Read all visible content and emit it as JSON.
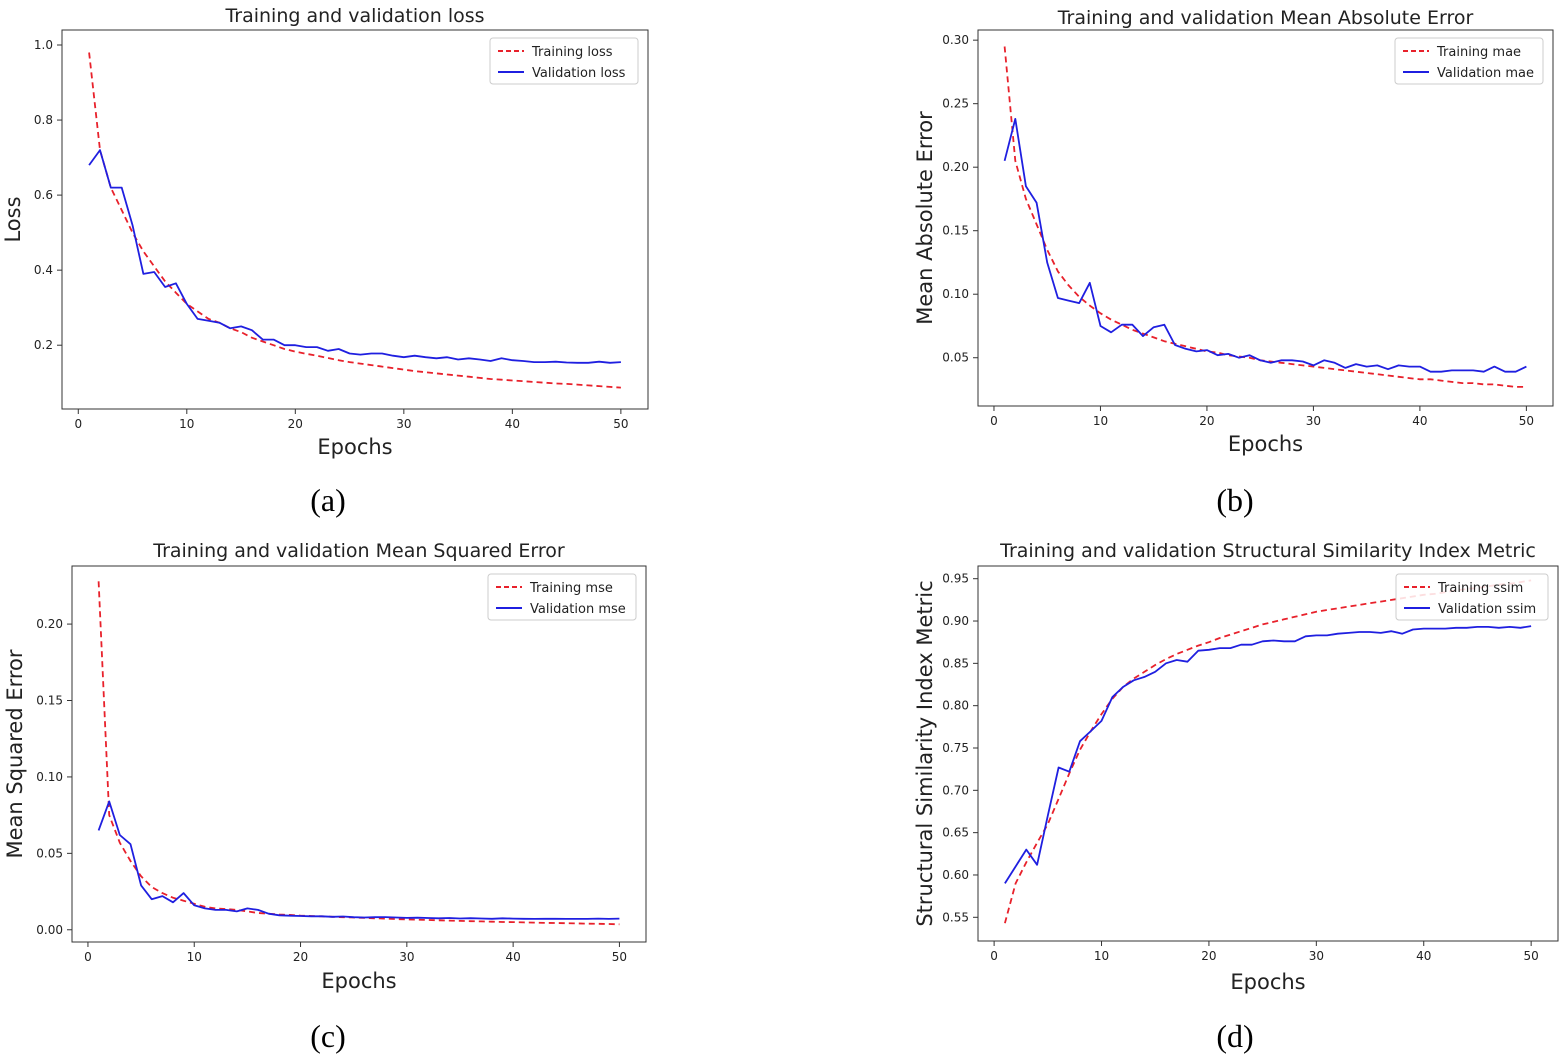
{
  "chart_data": [
    {
      "type": "line",
      "panel": "a",
      "title": "Training and validation loss",
      "xlabel": "Epochs",
      "ylabel": "Loss",
      "xlim": [
        -1.5,
        52.5
      ],
      "ylim": [
        0.03,
        1.04
      ],
      "xticks": [
        0,
        10,
        20,
        30,
        40,
        50
      ],
      "yticks": [
        0.2,
        0.4,
        0.6,
        0.8,
        1.0
      ],
      "ytick_labels": [
        "0.2",
        "0.4",
        "0.6",
        "0.8",
        "1.0"
      ],
      "legend_position": "top-right",
      "grid": false,
      "x": [
        1,
        2,
        3,
        4,
        5,
        6,
        7,
        8,
        9,
        10,
        11,
        12,
        13,
        14,
        15,
        16,
        17,
        18,
        19,
        20,
        21,
        22,
        23,
        24,
        25,
        26,
        27,
        28,
        29,
        30,
        31,
        32,
        33,
        34,
        35,
        36,
        37,
        38,
        39,
        40,
        41,
        42,
        43,
        44,
        45,
        46,
        47,
        48,
        49,
        50
      ],
      "series": [
        {
          "name": "Training loss",
          "color": "#e8212b",
          "dash": true,
          "values": [
            0.98,
            0.72,
            0.62,
            0.56,
            0.5,
            0.45,
            0.41,
            0.37,
            0.34,
            0.31,
            0.29,
            0.27,
            0.26,
            0.245,
            0.235,
            0.22,
            0.21,
            0.2,
            0.19,
            0.183,
            0.177,
            0.172,
            0.166,
            0.16,
            0.155,
            0.151,
            0.147,
            0.143,
            0.139,
            0.135,
            0.131,
            0.128,
            0.125,
            0.122,
            0.119,
            0.116,
            0.113,
            0.11,
            0.108,
            0.106,
            0.104,
            0.102,
            0.1,
            0.098,
            0.097,
            0.095,
            0.093,
            0.091,
            0.089,
            0.087
          ]
        },
        {
          "name": "Validation loss",
          "color": "#1f1fe0",
          "dash": false,
          "values": [
            0.68,
            0.72,
            0.62,
            0.62,
            0.52,
            0.39,
            0.395,
            0.355,
            0.365,
            0.31,
            0.27,
            0.265,
            0.26,
            0.245,
            0.25,
            0.24,
            0.215,
            0.215,
            0.2,
            0.2,
            0.195,
            0.195,
            0.185,
            0.19,
            0.178,
            0.175,
            0.178,
            0.178,
            0.172,
            0.168,
            0.172,
            0.168,
            0.165,
            0.168,
            0.162,
            0.165,
            0.162,
            0.158,
            0.165,
            0.16,
            0.158,
            0.155,
            0.155,
            0.156,
            0.154,
            0.153,
            0.153,
            0.156,
            0.153,
            0.155
          ]
        }
      ]
    },
    {
      "type": "line",
      "panel": "b",
      "title": "Training and validation Mean Absolute Error",
      "xlabel": "Epochs",
      "ylabel": "Mean Absolute Error",
      "xlim": [
        -1.5,
        52.5
      ],
      "ylim": [
        0.012,
        0.308
      ],
      "xticks": [
        0,
        10,
        20,
        30,
        40,
        50
      ],
      "yticks": [
        0.05,
        0.1,
        0.15,
        0.2,
        0.25,
        0.3
      ],
      "ytick_labels": [
        "0.05",
        "0.10",
        "0.15",
        "0.20",
        "0.25",
        "0.30"
      ],
      "legend_position": "top-right",
      "grid": false,
      "x": [
        1,
        2,
        3,
        4,
        5,
        6,
        7,
        8,
        9,
        10,
        11,
        12,
        13,
        14,
        15,
        16,
        17,
        18,
        19,
        20,
        21,
        22,
        23,
        24,
        25,
        26,
        27,
        28,
        29,
        30,
        31,
        32,
        33,
        34,
        35,
        36,
        37,
        38,
        39,
        40,
        41,
        42,
        43,
        44,
        45,
        46,
        47,
        48,
        49,
        50
      ],
      "series": [
        {
          "name": "Training mae",
          "color": "#e8212b",
          "dash": true,
          "values": [
            0.295,
            0.205,
            0.175,
            0.155,
            0.135,
            0.118,
            0.107,
            0.098,
            0.091,
            0.085,
            0.08,
            0.076,
            0.072,
            0.069,
            0.066,
            0.063,
            0.061,
            0.059,
            0.057,
            0.055,
            0.054,
            0.052,
            0.051,
            0.05,
            0.048,
            0.047,
            0.046,
            0.045,
            0.044,
            0.043,
            0.042,
            0.041,
            0.04,
            0.039,
            0.038,
            0.037,
            0.036,
            0.035,
            0.034,
            0.033,
            0.033,
            0.032,
            0.031,
            0.03,
            0.03,
            0.029,
            0.029,
            0.028,
            0.027,
            0.027
          ]
        },
        {
          "name": "Validation mae",
          "color": "#1f1fe0",
          "dash": false,
          "values": [
            0.205,
            0.238,
            0.185,
            0.172,
            0.125,
            0.097,
            0.095,
            0.093,
            0.109,
            0.075,
            0.07,
            0.076,
            0.076,
            0.067,
            0.074,
            0.076,
            0.06,
            0.057,
            0.055,
            0.056,
            0.052,
            0.053,
            0.05,
            0.052,
            0.048,
            0.046,
            0.048,
            0.048,
            0.047,
            0.044,
            0.048,
            0.046,
            0.042,
            0.045,
            0.043,
            0.044,
            0.041,
            0.044,
            0.043,
            0.043,
            0.039,
            0.039,
            0.04,
            0.04,
            0.04,
            0.039,
            0.043,
            0.039,
            0.039,
            0.043
          ]
        }
      ]
    },
    {
      "type": "line",
      "panel": "c",
      "title": "Training and validation Mean Squared Error",
      "xlabel": "Epochs",
      "ylabel": "Mean Squared Error",
      "xlim": [
        -1.5,
        52.5
      ],
      "ylim": [
        -0.008,
        0.238
      ],
      "xticks": [
        0,
        10,
        20,
        30,
        40,
        50
      ],
      "yticks": [
        0.0,
        0.05,
        0.1,
        0.15,
        0.2
      ],
      "ytick_labels": [
        "0.00",
        "0.05",
        "0.10",
        "0.15",
        "0.20"
      ],
      "legend_position": "top-right",
      "grid": false,
      "x": [
        1,
        2,
        3,
        4,
        5,
        6,
        7,
        8,
        9,
        10,
        11,
        12,
        13,
        14,
        15,
        16,
        17,
        18,
        19,
        20,
        21,
        22,
        23,
        24,
        25,
        26,
        27,
        28,
        29,
        30,
        31,
        32,
        33,
        34,
        35,
        36,
        37,
        38,
        39,
        40,
        41,
        42,
        43,
        44,
        45,
        46,
        47,
        48,
        49,
        50
      ],
      "series": [
        {
          "name": "Training mse",
          "color": "#e8212b",
          "dash": true,
          "values": [
            0.228,
            0.075,
            0.057,
            0.045,
            0.035,
            0.028,
            0.024,
            0.021,
            0.019,
            0.017,
            0.015,
            0.014,
            0.0135,
            0.013,
            0.012,
            0.011,
            0.0105,
            0.01,
            0.0097,
            0.0093,
            0.009,
            0.0088,
            0.0085,
            0.0082,
            0.008,
            0.0078,
            0.0075,
            0.0073,
            0.007,
            0.0068,
            0.0066,
            0.0064,
            0.0062,
            0.006,
            0.0058,
            0.0056,
            0.0055,
            0.0053,
            0.0051,
            0.005,
            0.0048,
            0.0047,
            0.0045,
            0.0044,
            0.0043,
            0.0042,
            0.004,
            0.0039,
            0.0038,
            0.0036
          ]
        },
        {
          "name": "Validation mse",
          "color": "#1f1fe0",
          "dash": false,
          "values": [
            0.065,
            0.084,
            0.062,
            0.056,
            0.029,
            0.02,
            0.022,
            0.018,
            0.024,
            0.016,
            0.014,
            0.013,
            0.013,
            0.012,
            0.014,
            0.013,
            0.0105,
            0.0095,
            0.0092,
            0.009,
            0.0088,
            0.0088,
            0.0085,
            0.0087,
            0.0082,
            0.008,
            0.0082,
            0.0083,
            0.008,
            0.0078,
            0.0079,
            0.0077,
            0.0075,
            0.0077,
            0.0074,
            0.0076,
            0.0074,
            0.0072,
            0.0075,
            0.0073,
            0.0072,
            0.0071,
            0.0072,
            0.0072,
            0.0071,
            0.0071,
            0.0071,
            0.0073,
            0.0071,
            0.0073
          ]
        }
      ]
    },
    {
      "type": "line",
      "panel": "d",
      "title": "Training and validation Structural Similarity Index Metric",
      "xlabel": "Epochs",
      "ylabel": "Structural Similarity Index Metric",
      "xlim": [
        -1.5,
        52.5
      ],
      "ylim": [
        0.522,
        0.965
      ],
      "xticks": [
        0,
        10,
        20,
        30,
        40,
        50
      ],
      "yticks": [
        0.55,
        0.6,
        0.65,
        0.7,
        0.75,
        0.8,
        0.85,
        0.9,
        0.95
      ],
      "ytick_labels": [
        "0.55",
        "0.60",
        "0.65",
        "0.70",
        "0.75",
        "0.80",
        "0.85",
        "0.90",
        "0.95"
      ],
      "legend_position": "top-right",
      "grid": false,
      "x": [
        1,
        2,
        3,
        4,
        5,
        6,
        7,
        8,
        9,
        10,
        11,
        12,
        13,
        14,
        15,
        16,
        17,
        18,
        19,
        20,
        21,
        22,
        23,
        24,
        25,
        26,
        27,
        28,
        29,
        30,
        31,
        32,
        33,
        34,
        35,
        36,
        37,
        38,
        39,
        40,
        41,
        42,
        43,
        44,
        45,
        46,
        47,
        48,
        49,
        50
      ],
      "series": [
        {
          "name": "Training ssim",
          "color": "#e8212b",
          "dash": true,
          "values": [
            0.543,
            0.59,
            0.615,
            0.638,
            0.66,
            0.69,
            0.72,
            0.748,
            0.77,
            0.79,
            0.808,
            0.822,
            0.832,
            0.84,
            0.848,
            0.855,
            0.861,
            0.866,
            0.871,
            0.875,
            0.88,
            0.884,
            0.888,
            0.892,
            0.896,
            0.899,
            0.902,
            0.905,
            0.908,
            0.911,
            0.913,
            0.915,
            0.917,
            0.919,
            0.921,
            0.923,
            0.925,
            0.927,
            0.929,
            0.931,
            0.932,
            0.934,
            0.936,
            0.938,
            0.939,
            0.941,
            0.943,
            0.944,
            0.946,
            0.948
          ]
        },
        {
          "name": "Validation ssim",
          "color": "#1f1fe0",
          "dash": false,
          "values": [
            0.59,
            0.61,
            0.63,
            0.612,
            0.67,
            0.727,
            0.722,
            0.758,
            0.77,
            0.782,
            0.81,
            0.822,
            0.83,
            0.834,
            0.84,
            0.85,
            0.854,
            0.852,
            0.865,
            0.866,
            0.868,
            0.868,
            0.872,
            0.872,
            0.876,
            0.877,
            0.876,
            0.876,
            0.882,
            0.883,
            0.883,
            0.885,
            0.886,
            0.887,
            0.887,
            0.886,
            0.888,
            0.885,
            0.89,
            0.891,
            0.891,
            0.891,
            0.892,
            0.892,
            0.893,
            0.893,
            0.892,
            0.893,
            0.892,
            0.894
          ]
        }
      ]
    }
  ],
  "captions": {
    "a": "(a)",
    "b": "(b)",
    "c": "(c)",
    "d": "(d)"
  }
}
